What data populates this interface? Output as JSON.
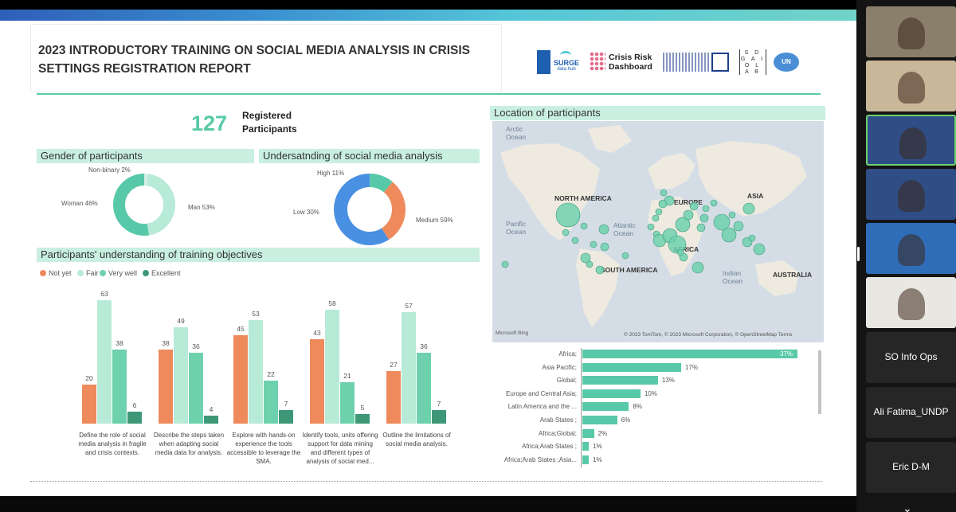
{
  "report": {
    "title_line1": "2023 INTRODUCTORY TRAINING ON SOCIAL MEDIA ANALYSIS IN CRISIS",
    "title_line2": "SETTINGS REGISTRATION REPORT",
    "logos": {
      "undp": "UNDP",
      "surge": "SURGE",
      "surge_sub": "data hub",
      "crisis": "Crisis Risk",
      "crisis2": "Dashboard",
      "sdg": "S D G A I O L A B",
      "un": "UN"
    }
  },
  "registered": {
    "count": "127",
    "label1": "Registered",
    "label2": "Participants"
  },
  "gender": {
    "header": "Gender of participants",
    "labels": [
      "Non-binary 2%",
      "Woman 46%",
      "Man 53%"
    ],
    "values": [
      2,
      46,
      53
    ],
    "colors": [
      "#d6efe6",
      "#b8ead8",
      "#58c9a8"
    ]
  },
  "understanding": {
    "header": "Undersatnding of social media analysis",
    "labels": [
      "High 11%",
      "Low 30%",
      "Medium 59%"
    ],
    "values": [
      11,
      30,
      59
    ],
    "colors": [
      "#58c9a8",
      "#ee8a5c",
      "#4a90e2"
    ]
  },
  "objectives": {
    "header": "Participants' understanding of training objectives",
    "legend": [
      "Not yet",
      "Fair",
      "Very well",
      "Excellent"
    ],
    "colors": [
      "#ee8a5c",
      "#b8ead8",
      "#6ed1ae",
      "#3e9878"
    ],
    "groups": [
      {
        "label": "Define the role of social media analysis in fragile and crisis contexts.",
        "values": [
          20,
          63,
          38,
          6
        ]
      },
      {
        "label": "Describe the steps taken when adapting social media data for analysis.",
        "values": [
          38,
          49,
          36,
          4
        ]
      },
      {
        "label": "Explore with hands-on experience the tools accessible to leverage the SMA.",
        "values": [
          45,
          53,
          22,
          7
        ]
      },
      {
        "label": "Identify tools, units offering support for data mining and different types of analysis of social med...",
        "values": [
          43,
          58,
          21,
          5
        ]
      },
      {
        "label": "Outline the limitations of social media analysis.",
        "values": [
          27,
          57,
          36,
          7
        ]
      }
    ]
  },
  "location": {
    "header": "Location of participants",
    "labels": {
      "arctic": "Arctic Ocean",
      "na": "NORTH AMERICA",
      "europe": "EUROPE",
      "asia": "ASIA",
      "pacific": "Pacific Ocean",
      "atlantic": "Atlantic Ocean",
      "africa": "AFRICA",
      "sa": "SOUTH AMERICA",
      "indian": "Indian Ocean",
      "australia": "AUSTRALIA"
    },
    "copyright": "© 2023 TomTom, © 2023 Microsoft Corporation, © OpenStreetMap Terms",
    "bing": "Microsoft Bing"
  },
  "regions": {
    "rows": [
      {
        "name": "Africa;",
        "value": 37,
        "label": "37%"
      },
      {
        "name": "Asia Pacific;",
        "value": 17,
        "label": "17%"
      },
      {
        "name": "Global;",
        "value": 13,
        "label": "13%"
      },
      {
        "name": "Europe and Central Asia;",
        "value": 10,
        "label": "10%"
      },
      {
        "name": "Latin America and the ...",
        "value": 8,
        "label": "8%"
      },
      {
        "name": "Arab States ;",
        "value": 6,
        "label": "6%"
      },
      {
        "name": "Africa;Global;",
        "value": 2,
        "label": "2%"
      },
      {
        "name": "Africa;Arab States ;",
        "value": 1,
        "label": "1%"
      },
      {
        "name": "Africa;Arab States ;Asia...",
        "value": 1,
        "label": "1%"
      }
    ]
  },
  "participants": [
    {
      "name": ""
    },
    {
      "name": ""
    },
    {
      "name": ""
    },
    {
      "name": ""
    },
    {
      "name": ""
    },
    {
      "name": ""
    },
    {
      "name": "SO Info Ops"
    },
    {
      "name": "Ali Fatima_UNDP"
    },
    {
      "name": "Eric D-M"
    }
  ],
  "chart_data": [
    {
      "type": "pie",
      "title": "Gender of participants",
      "categories": [
        "Non-binary",
        "Woman",
        "Man"
      ],
      "values": [
        2,
        46,
        53
      ]
    },
    {
      "type": "pie",
      "title": "Undersatnding of social media analysis",
      "categories": [
        "High",
        "Low",
        "Medium"
      ],
      "values": [
        11,
        30,
        59
      ]
    },
    {
      "type": "bar",
      "title": "Participants' understanding of training objectives",
      "categories": [
        "Define the role of social media analysis in fragile and crisis contexts.",
        "Describe the steps taken when adapting social media data for analysis.",
        "Explore with hands-on experience the tools accessible to leverage the SMA.",
        "Identify tools, units offering support for data mining and different types of analysis of social med...",
        "Outline the limitations of social media analysis."
      ],
      "series": [
        {
          "name": "Not yet",
          "values": [
            20,
            38,
            45,
            43,
            27
          ]
        },
        {
          "name": "Fair",
          "values": [
            63,
            49,
            53,
            58,
            57
          ]
        },
        {
          "name": "Very well",
          "values": [
            38,
            36,
            22,
            21,
            36
          ]
        },
        {
          "name": "Excellent",
          "values": [
            6,
            4,
            7,
            5,
            7
          ]
        }
      ],
      "legend": "top-left"
    },
    {
      "type": "bar",
      "orientation": "horizontal",
      "categories": [
        "Africa;",
        "Asia Pacific;",
        "Global;",
        "Europe and Central Asia;",
        "Latin America and the ...",
        "Arab States ;",
        "Africa;Global;",
        "Africa;Arab States ;",
        "Africa;Arab States ;Asia..."
      ],
      "values": [
        37,
        17,
        13,
        10,
        8,
        6,
        2,
        1,
        1
      ]
    }
  ]
}
